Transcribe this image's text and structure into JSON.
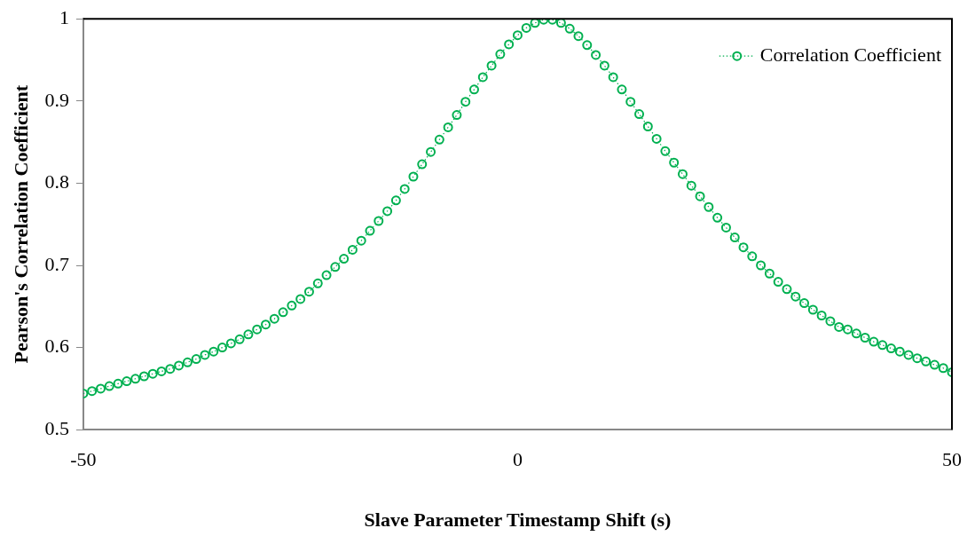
{
  "chart_data": {
    "type": "line",
    "xlabel": "Slave Parameter Timestamp Shift (s)",
    "ylabel": "Pearson's Correlation Coefficient",
    "x": [
      -50,
      -49,
      -48,
      -47,
      -46,
      -45,
      -44,
      -43,
      -42,
      -41,
      -40,
      -39,
      -38,
      -37,
      -36,
      -35,
      -34,
      -33,
      -32,
      -31,
      -30,
      -29,
      -28,
      -27,
      -26,
      -25,
      -24,
      -23,
      -22,
      -21,
      -20,
      -19,
      -18,
      -17,
      -16,
      -15,
      -14,
      -13,
      -12,
      -11,
      -10,
      -9,
      -8,
      -7,
      -6,
      -5,
      -4,
      -3,
      -2,
      -1,
      0,
      1,
      2,
      3,
      4,
      5,
      6,
      7,
      8,
      9,
      10,
      11,
      12,
      13,
      14,
      15,
      16,
      17,
      18,
      19,
      20,
      21,
      22,
      23,
      24,
      25,
      26,
      27,
      28,
      29,
      30,
      31,
      32,
      33,
      34,
      35,
      36,
      37,
      38,
      39,
      40,
      41,
      42,
      43,
      44,
      45,
      46,
      47,
      48,
      49,
      50
    ],
    "series": [
      {
        "name": "Correlation Coefficient",
        "color": "#00b050",
        "values": [
          0.544,
          0.547,
          0.55,
          0.553,
          0.556,
          0.559,
          0.562,
          0.565,
          0.568,
          0.571,
          0.574,
          0.578,
          0.582,
          0.586,
          0.591,
          0.595,
          0.6,
          0.605,
          0.61,
          0.616,
          0.622,
          0.628,
          0.635,
          0.643,
          0.651,
          0.659,
          0.668,
          0.678,
          0.688,
          0.698,
          0.708,
          0.719,
          0.73,
          0.742,
          0.754,
          0.766,
          0.779,
          0.793,
          0.808,
          0.823,
          0.838,
          0.853,
          0.868,
          0.883,
          0.899,
          0.914,
          0.929,
          0.943,
          0.957,
          0.969,
          0.98,
          0.989,
          0.995,
          0.999,
          0.999,
          0.995,
          0.988,
          0.979,
          0.968,
          0.956,
          0.943,
          0.929,
          0.914,
          0.899,
          0.884,
          0.869,
          0.854,
          0.839,
          0.825,
          0.811,
          0.797,
          0.784,
          0.771,
          0.758,
          0.746,
          0.734,
          0.722,
          0.711,
          0.7,
          0.69,
          0.68,
          0.671,
          0.662,
          0.654,
          0.646,
          0.639,
          0.632,
          0.625,
          0.622,
          0.617,
          0.612,
          0.607,
          0.603,
          0.599,
          0.595,
          0.591,
          0.587,
          0.583,
          0.579,
          0.575,
          0.57
        ]
      }
    ],
    "xlim": [
      -50,
      50
    ],
    "xticks": [
      -50,
      0,
      50
    ],
    "ylim": [
      0.5,
      1
    ],
    "yticks": [
      0.5,
      0.6,
      0.7,
      0.8,
      0.9,
      {
        "value": 1,
        "label": "1"
      }
    ],
    "grid": false,
    "legend": "top right",
    "marker": "circle",
    "line_style": "dotted"
  }
}
